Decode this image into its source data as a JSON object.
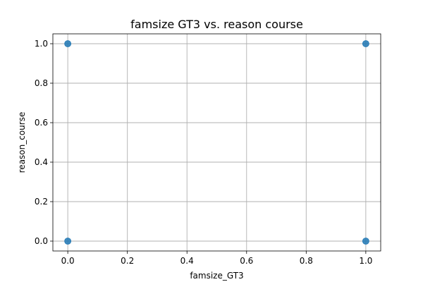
{
  "chart_data": {
    "type": "scatter",
    "title": "famsize GT3 vs. reason course",
    "xlabel": "famsize_GT3",
    "ylabel": "reason_course",
    "xlim": [
      -0.05,
      1.05
    ],
    "ylim": [
      -0.05,
      1.05
    ],
    "xticks": [
      0.0,
      0.2,
      0.4,
      0.6,
      0.8,
      1.0
    ],
    "xtick_labels": [
      "0.0",
      "0.2",
      "0.4",
      "0.6",
      "0.8",
      "1.0"
    ],
    "yticks": [
      0.0,
      0.2,
      0.4,
      0.6,
      0.8,
      1.0
    ],
    "ytick_labels": [
      "0.0",
      "0.2",
      "0.4",
      "0.6",
      "0.8",
      "1.0"
    ],
    "grid": true,
    "legend": false,
    "points": [
      {
        "x": 0,
        "y": 1
      },
      {
        "x": 0,
        "y": 0
      },
      {
        "x": 1,
        "y": 1
      },
      {
        "x": 1,
        "y": 0
      }
    ],
    "color": "#1f77b4"
  }
}
